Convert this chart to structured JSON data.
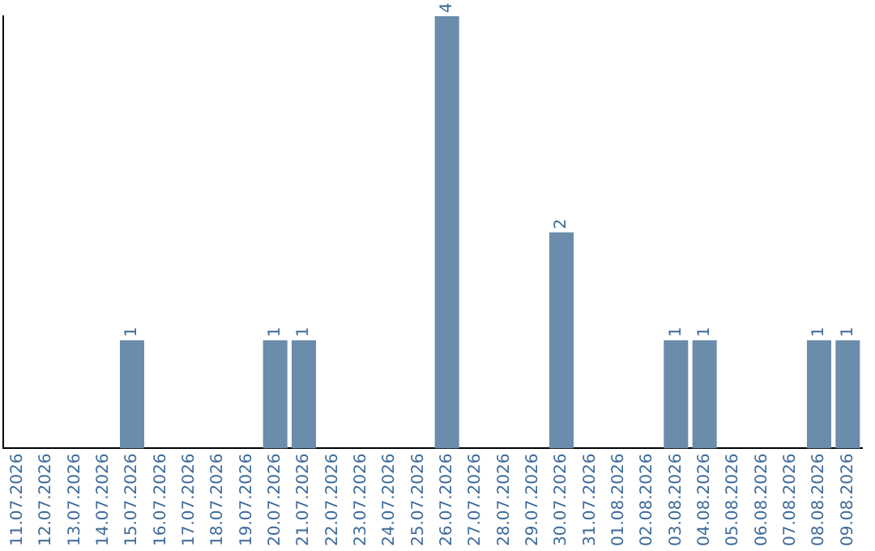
{
  "chart_data": {
    "type": "bar",
    "categories": [
      "11.07.2026",
      "12.07.2026",
      "13.07.2026",
      "14.07.2026",
      "15.07.2026",
      "16.07.2026",
      "17.07.2026",
      "18.07.2026",
      "19.07.2026",
      "20.07.2026",
      "21.07.2026",
      "22.07.2026",
      "23.07.2026",
      "24.07.2026",
      "25.07.2026",
      "26.07.2026",
      "27.07.2026",
      "28.07.2026",
      "29.07.2026",
      "30.07.2026",
      "31.07.2026",
      "01.08.2026",
      "02.08.2026",
      "03.08.2026",
      "04.08.2026",
      "05.08.2026",
      "06.08.2026",
      "07.08.2026",
      "08.08.2026",
      "09.08.2026"
    ],
    "values": [
      0,
      0,
      0,
      0,
      1,
      0,
      0,
      0,
      0,
      1,
      1,
      0,
      0,
      0,
      0,
      4,
      0,
      0,
      0,
      2,
      0,
      0,
      0,
      1,
      1,
      0,
      0,
      0,
      1,
      1
    ],
    "value_labels": [
      null,
      null,
      null,
      null,
      "1",
      null,
      null,
      null,
      null,
      "1",
      "1",
      null,
      null,
      null,
      null,
      "4",
      null,
      null,
      null,
      "2",
      null,
      null,
      null,
      "1",
      "1",
      null,
      null,
      null,
      "1",
      "1"
    ],
    "color": "#6b8cab",
    "grid": false,
    "tick_labels": "x",
    "legend": false
  }
}
